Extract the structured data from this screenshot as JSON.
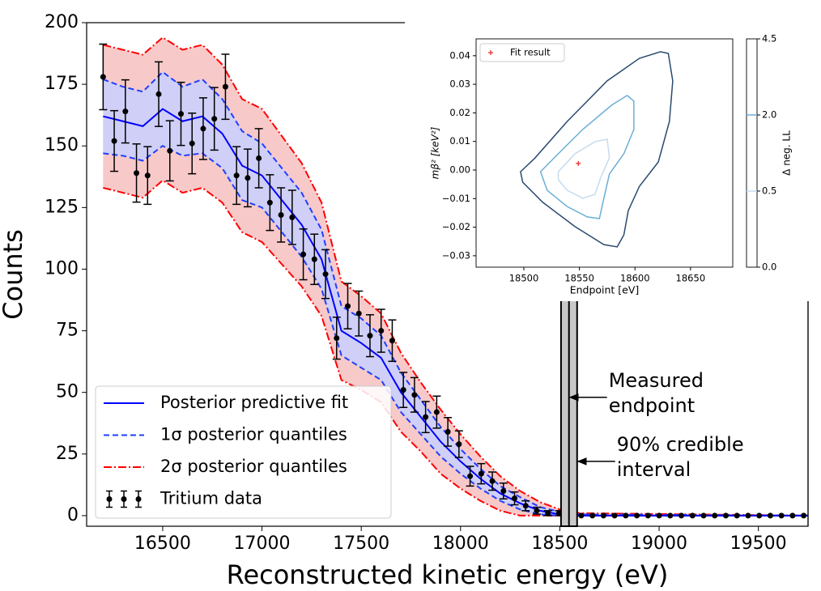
{
  "chart_data": [
    {
      "type": "spectrum",
      "xlabel": "Reconstructed kinetic energy (eV)",
      "ylabel": "Counts",
      "xlim": [
        16117,
        19750
      ],
      "ylim": [
        -4.3,
        200
      ],
      "xticks": [
        16500,
        17000,
        17500,
        18000,
        18500,
        19000,
        19500
      ],
      "yticks": [
        0,
        25,
        50,
        75,
        100,
        125,
        150,
        175,
        200
      ],
      "legend": "lower left",
      "x": [
        16200,
        16300,
        16400,
        16500,
        16600,
        16700,
        16800,
        16900,
        17000,
        17100,
        17200,
        17300,
        17400,
        17500,
        17600,
        17700,
        17800,
        17900,
        18000,
        18100,
        18200,
        18300,
        18400,
        18500,
        18600,
        19750
      ],
      "series": [
        {
          "name": "Posterior predictive fit",
          "type": "line",
          "style": "solid",
          "color": "#0000ff",
          "values": [
            162,
            160,
            158,
            165,
            160,
            162,
            155,
            142,
            138,
            128,
            118,
            104,
            75,
            70,
            64,
            50,
            40,
            30,
            22,
            15,
            9,
            5,
            2,
            0.5,
            0,
            0
          ]
        },
        {
          "name": "1σ posterior quantiles",
          "type": "band",
          "style": "dashed",
          "color": "#1f3fff",
          "fill": "#cfcff7",
          "lower": [
            147,
            146,
            144,
            150,
            146,
            147,
            141,
            128,
            125,
            115,
            105,
            92,
            65,
            60,
            55,
            42,
            33,
            24,
            17,
            11,
            6,
            2.5,
            0.5,
            0,
            0,
            0
          ],
          "upper": [
            177,
            174,
            172,
            180,
            174,
            177,
            169,
            156,
            151,
            141,
            131,
            116,
            85,
            80,
            73,
            58,
            47,
            36,
            27,
            19,
            12,
            7.5,
            3.5,
            1.5,
            0.5,
            0
          ]
        },
        {
          "name": "2σ posterior quantiles",
          "type": "band",
          "style": "dashdot",
          "color": "#ff0000",
          "fill": "#f8c9c9",
          "lower": [
            133,
            131,
            129,
            136,
            131,
            133,
            127,
            115,
            111,
            102,
            93,
            81,
            55,
            51,
            46,
            34,
            26,
            17,
            11,
            6,
            2,
            0,
            0,
            0,
            0,
            0
          ],
          "upper": [
            191,
            189,
            187,
            194,
            189,
            191,
            183,
            169,
            165,
            154,
            143,
            127,
            95,
            89,
            82,
            66,
            54,
            43,
            33,
            24,
            16,
            10,
            5.5,
            2.5,
            1,
            0
          ]
        },
        {
          "name": "Tritium data",
          "type": "errorbar",
          "color": "#000000",
          "x": [
            16200,
            16256,
            16312,
            16368,
            16424,
            16480,
            16536,
            16592,
            16648,
            16704,
            16760,
            16816,
            16872,
            16928,
            16984,
            17040,
            17096,
            17152,
            17208,
            17264,
            17320,
            17376,
            17432,
            17488,
            17544,
            17600,
            17656,
            17712,
            17768,
            17824,
            17880,
            17936,
            17992,
            18048,
            18104,
            18160,
            18216,
            18272,
            18328,
            18384,
            18440,
            18496,
            18552,
            18608,
            18664,
            18720,
            18776,
            18832,
            18888,
            18944,
            19000,
            19056,
            19112,
            19168,
            19224,
            19280,
            19336,
            19392,
            19448,
            19504,
            19560,
            19616,
            19672,
            19728
          ],
          "values": [
            178,
            152,
            164,
            139,
            138,
            171,
            148,
            163,
            151,
            157,
            161,
            174,
            138,
            137,
            145,
            127,
            122,
            121,
            106,
            104,
            98,
            72,
            85,
            82,
            73,
            75,
            71,
            51,
            49,
            40,
            42,
            34,
            29,
            16,
            17,
            14,
            10,
            7,
            4,
            2,
            1,
            1,
            0,
            0,
            0,
            0,
            0,
            0,
            0,
            0,
            0,
            0,
            0,
            0,
            0,
            0,
            0,
            0,
            0,
            0,
            0,
            0,
            0,
            0
          ],
          "errors": [
            13.3,
            12.3,
            12.8,
            11.8,
            11.7,
            13.1,
            12.2,
            12.8,
            12.3,
            12.5,
            12.7,
            13.2,
            11.7,
            11.7,
            12.0,
            11.3,
            11.0,
            11.0,
            10.3,
            10.2,
            9.9,
            8.5,
            9.2,
            9.1,
            8.5,
            8.7,
            8.4,
            7.1,
            7.0,
            6.3,
            6.5,
            5.8,
            5.4,
            4.0,
            4.1,
            3.7,
            3.2,
            2.6,
            2.0,
            1.4,
            1.0,
            1.0,
            0,
            0,
            0,
            0,
            0,
            0,
            0,
            0,
            0,
            0,
            0,
            0,
            0,
            0,
            0,
            0,
            0,
            0,
            0,
            0,
            0,
            0
          ]
        }
      ],
      "interval": {
        "low": 18506,
        "high": 18587,
        "endpoint": 18546,
        "color": "#c8c8c8"
      },
      "annotations": [
        {
          "lines": [
            "Measured",
            "endpoint"
          ],
          "x": 18546,
          "y": 48
        },
        {
          "lines": [
            "90% credible",
            "interval"
          ],
          "x": 18587,
          "y": 22
        }
      ]
    },
    {
      "type": "contour",
      "xlabel": "Endpoint [eV]",
      "ylabel": "mβ² [keV²]",
      "xlim": [
        18457,
        18688
      ],
      "ylim": [
        -0.034,
        0.0459
      ],
      "xticks": [
        18500,
        18550,
        18600,
        18650
      ],
      "yticks": [
        0.04,
        0.03,
        0.02,
        0.01,
        {
          "value": 0,
          "label": "0.00"
        },
        {
          "value": -0.01,
          "label": "−0.01"
        },
        {
          "value": -0.02,
          "label": "−0.02"
        },
        {
          "value": -0.03,
          "label": "−0.03"
        }
      ],
      "colorbar": {
        "label": "Δ neg. LL",
        "ticks": [
          {
            "value": 0,
            "label": "0.0"
          },
          0.5,
          {
            "value": 2,
            "label": "2.0"
          },
          4.5
        ]
      },
      "legend": "upper left",
      "point": {
        "name": "Fit result",
        "color": "#e8282b",
        "x": 18549,
        "y": 0.0023
      },
      "contours": [
        {
          "level": 4.5,
          "color": "#2b4a6f",
          "x": [
            18497,
            18510,
            18539,
            18575,
            18604,
            18623,
            18630,
            18634,
            18631,
            18621,
            18604,
            18594,
            18590,
            18584,
            18572,
            18546,
            18517,
            18499
          ],
          "y": [
            -0.0006,
            0.0042,
            0.017,
            0.0312,
            0.0391,
            0.0414,
            0.0408,
            0.0312,
            0.017,
            0.0028,
            -0.0057,
            -0.0142,
            -0.0227,
            -0.0269,
            -0.0261,
            -0.0198,
            -0.0113,
            -0.0043
          ]
        },
        {
          "level": 2,
          "color": "#6aaed6",
          "x": [
            18515,
            18531,
            18553,
            18579,
            18593,
            18599,
            18599,
            18590,
            18577,
            18572,
            18568,
            18557,
            18539,
            18521
          ],
          "y": [
            -0.0006,
            0.0057,
            0.0142,
            0.0227,
            0.0261,
            0.0241,
            0.0142,
            0.0057,
            -0.0014,
            -0.0099,
            -0.017,
            -0.0164,
            -0.0128,
            -0.0071
          ]
        },
        {
          "level": 0.5,
          "color": "#c6dbef",
          "x": [
            18531,
            18546,
            18564,
            18575,
            18577,
            18569,
            18564,
            18553,
            18539,
            18531
          ],
          "y": [
            -0.0006,
            0.0057,
            0.0099,
            0.0108,
            0.0043,
            -0.0028,
            -0.0085,
            -0.0099,
            -0.0071,
            -0.0034
          ]
        }
      ]
    }
  ]
}
